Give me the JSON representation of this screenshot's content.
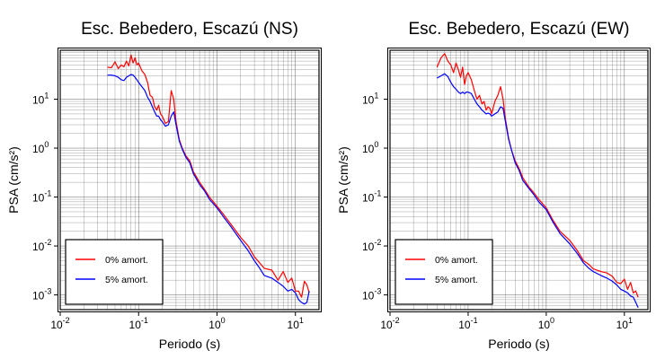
{
  "chart_data": [
    {
      "type": "line",
      "title": "Esc. Bebedero, Escazú (NS)",
      "xlabel": "Periodo (s)",
      "ylabel": "PSA (cm/s²)",
      "xscale": "log",
      "yscale": "log",
      "xlim": [
        0.01,
        20
      ],
      "ylim": [
        0.0005,
        100
      ],
      "grid": true,
      "legend_position": "bottom-left",
      "xticks": [
        {
          "value": 0.01,
          "base": "10",
          "exp": "-2"
        },
        {
          "value": 0.1,
          "base": "10",
          "exp": "-1"
        },
        {
          "value": 1,
          "base": "10",
          "exp": "0"
        },
        {
          "value": 10,
          "base": "10",
          "exp": "1"
        }
      ],
      "yticks": [
        {
          "value": 0.001,
          "base": "10",
          "exp": "-3"
        },
        {
          "value": 0.01,
          "base": "10",
          "exp": "-2"
        },
        {
          "value": 0.1,
          "base": "10",
          "exp": "-1"
        },
        {
          "value": 1,
          "base": "10",
          "exp": "0"
        },
        {
          "value": 10,
          "base": "10",
          "exp": "1"
        }
      ],
      "series": [
        {
          "name": "0% amort.",
          "color": "#ff0000",
          "x": [
            0.04,
            0.045,
            0.05,
            0.055,
            0.06,
            0.065,
            0.07,
            0.075,
            0.08,
            0.085,
            0.09,
            0.095,
            0.1,
            0.11,
            0.12,
            0.13,
            0.14,
            0.15,
            0.16,
            0.17,
            0.18,
            0.19,
            0.2,
            0.22,
            0.24,
            0.26,
            0.28,
            0.3,
            0.33,
            0.36,
            0.4,
            0.45,
            0.5,
            0.6,
            0.7,
            0.8,
            1.0,
            1.2,
            1.5,
            2.0,
            2.5,
            3.0,
            3.5,
            4.0,
            5.0,
            6.0,
            7.0,
            8.0,
            9.0,
            10.0,
            11.0,
            12.0,
            13.0,
            14.0,
            15.0
          ],
          "y": [
            45,
            44,
            58,
            42,
            50,
            46,
            60,
            48,
            80,
            55,
            70,
            50,
            55,
            38,
            32,
            22,
            12,
            11,
            7,
            6,
            7.5,
            5,
            4.5,
            3.2,
            3.5,
            15,
            10,
            3.5,
            1.5,
            1.0,
            0.7,
            0.55,
            0.33,
            0.2,
            0.14,
            0.1,
            0.065,
            0.045,
            0.028,
            0.015,
            0.01,
            0.006,
            0.0045,
            0.0035,
            0.0032,
            0.002,
            0.003,
            0.0018,
            0.0022,
            0.0012,
            0.0012,
            0.0009,
            0.0019,
            0.0016,
            0.0011
          ]
        },
        {
          "name": "5% amort.",
          "color": "#0000ff",
          "x": [
            0.04,
            0.045,
            0.05,
            0.055,
            0.06,
            0.065,
            0.07,
            0.075,
            0.08,
            0.085,
            0.09,
            0.095,
            0.1,
            0.11,
            0.12,
            0.13,
            0.14,
            0.15,
            0.16,
            0.17,
            0.18,
            0.19,
            0.2,
            0.22,
            0.24,
            0.26,
            0.28,
            0.3,
            0.33,
            0.36,
            0.4,
            0.45,
            0.5,
            0.6,
            0.7,
            0.8,
            1.0,
            1.2,
            1.5,
            2.0,
            2.5,
            3.0,
            3.5,
            4.0,
            5.0,
            6.0,
            7.0,
            8.0,
            9.0,
            10.0,
            11.0,
            12.0,
            13.0,
            14.0,
            15.0
          ],
          "y": [
            31,
            31,
            30,
            28,
            25,
            24,
            28,
            30,
            32,
            31,
            28,
            25,
            22,
            18,
            15,
            11,
            9,
            7,
            5.5,
            4.5,
            4.5,
            3.8,
            3.5,
            2.8,
            3.0,
            4.5,
            5.5,
            3.0,
            1.4,
            0.95,
            0.65,
            0.5,
            0.3,
            0.18,
            0.13,
            0.09,
            0.06,
            0.04,
            0.025,
            0.013,
            0.008,
            0.005,
            0.0035,
            0.0025,
            0.0022,
            0.0018,
            0.0015,
            0.0012,
            0.0013,
            0.0011,
            0.0008,
            0.0007,
            0.00065,
            0.0007,
            0.0012
          ]
        }
      ]
    },
    {
      "type": "line",
      "title": "Esc. Bebedero, Escazú (EW)",
      "xlabel": "Periodo (s)",
      "ylabel": "PSA (cm/s²)",
      "xscale": "log",
      "yscale": "log",
      "xlim": [
        0.01,
        20
      ],
      "ylim": [
        0.0005,
        100
      ],
      "grid": true,
      "legend_position": "bottom-left",
      "xticks": [
        {
          "value": 0.01,
          "base": "10",
          "exp": "-2"
        },
        {
          "value": 0.1,
          "base": "10",
          "exp": "-1"
        },
        {
          "value": 1,
          "base": "10",
          "exp": "0"
        },
        {
          "value": 10,
          "base": "10",
          "exp": "1"
        }
      ],
      "yticks": [
        {
          "value": 0.001,
          "base": "10",
          "exp": "-3"
        },
        {
          "value": 0.01,
          "base": "10",
          "exp": "-2"
        },
        {
          "value": 0.1,
          "base": "10",
          "exp": "-1"
        },
        {
          "value": 1,
          "base": "10",
          "exp": "0"
        },
        {
          "value": 10,
          "base": "10",
          "exp": "1"
        }
      ],
      "series": [
        {
          "name": "0% amort.",
          "color": "#ff0000",
          "x": [
            0.04,
            0.045,
            0.05,
            0.055,
            0.06,
            0.065,
            0.07,
            0.075,
            0.08,
            0.085,
            0.09,
            0.095,
            0.1,
            0.11,
            0.12,
            0.13,
            0.14,
            0.15,
            0.16,
            0.17,
            0.18,
            0.19,
            0.2,
            0.22,
            0.24,
            0.26,
            0.28,
            0.3,
            0.33,
            0.36,
            0.4,
            0.45,
            0.5,
            0.6,
            0.7,
            0.8,
            1.0,
            1.2,
            1.5,
            2.0,
            2.5,
            3.0,
            3.5,
            4.0,
            5.0,
            6.0,
            7.0,
            8.0,
            9.0,
            10.0,
            11.0,
            12.0,
            13.0,
            14.0,
            15.0
          ],
          "y": [
            45,
            70,
            85,
            60,
            50,
            35,
            55,
            40,
            28,
            45,
            20,
            30,
            35,
            25,
            15,
            10,
            12,
            8,
            9,
            6,
            7,
            6.5,
            5,
            9,
            12,
            18,
            10,
            4,
            1.6,
            0.9,
            0.55,
            0.38,
            0.25,
            0.16,
            0.12,
            0.09,
            0.06,
            0.035,
            0.02,
            0.013,
            0.008,
            0.005,
            0.0042,
            0.0034,
            0.003,
            0.0028,
            0.0024,
            0.0018,
            0.0017,
            0.0021,
            0.0013,
            0.0018,
            0.0011,
            0.0012,
            0.0009
          ]
        },
        {
          "name": "5% amort.",
          "color": "#0000ff",
          "x": [
            0.04,
            0.045,
            0.05,
            0.055,
            0.06,
            0.065,
            0.07,
            0.075,
            0.08,
            0.085,
            0.09,
            0.095,
            0.1,
            0.11,
            0.12,
            0.13,
            0.14,
            0.15,
            0.16,
            0.17,
            0.18,
            0.19,
            0.2,
            0.22,
            0.24,
            0.26,
            0.28,
            0.3,
            0.33,
            0.36,
            0.4,
            0.45,
            0.5,
            0.6,
            0.7,
            0.8,
            1.0,
            1.2,
            1.5,
            2.0,
            2.5,
            3.0,
            3.5,
            4.0,
            5.0,
            6.0,
            7.0,
            8.0,
            9.0,
            10.0,
            11.0,
            12.0,
            13.0,
            14.0,
            15.0
          ],
          "y": [
            27,
            30,
            33,
            29,
            22,
            18,
            16,
            14,
            13,
            14,
            13,
            14,
            14,
            13,
            10,
            8,
            7,
            6,
            5.5,
            5,
            5.2,
            5,
            4.5,
            5,
            5.5,
            7,
            6.5,
            3.5,
            1.5,
            0.9,
            0.5,
            0.35,
            0.22,
            0.15,
            0.11,
            0.08,
            0.055,
            0.032,
            0.018,
            0.011,
            0.007,
            0.0045,
            0.0035,
            0.003,
            0.0025,
            0.0022,
            0.0019,
            0.0016,
            0.0013,
            0.0012,
            0.0011,
            0.00095,
            0.0009,
            0.0007,
            0.00055
          ]
        }
      ]
    }
  ]
}
